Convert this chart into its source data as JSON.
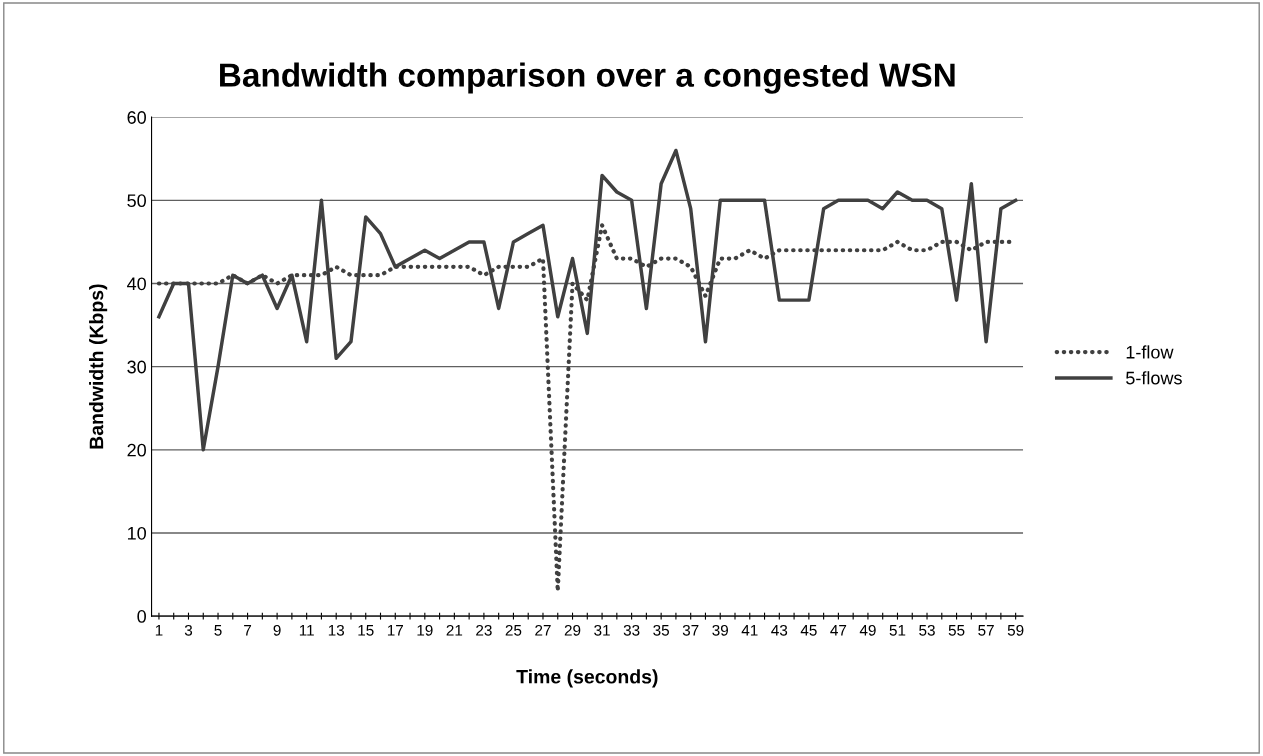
{
  "chart_data": {
    "type": "line",
    "title": "Bandwidth comparison over a congested WSN",
    "xlabel": "Time (seconds)",
    "ylabel": "Bandwidth (Kbps)",
    "categories": [
      "1",
      null,
      "3",
      null,
      "5",
      null,
      "7",
      null,
      "9",
      null,
      "11",
      null,
      "13",
      null,
      "15",
      null,
      "17",
      null,
      "19",
      null,
      "21",
      null,
      "23",
      null,
      "25",
      null,
      "27",
      null,
      "29",
      null,
      "31",
      null,
      "33",
      null,
      "35",
      null,
      "37",
      null,
      "39",
      null,
      "41",
      null,
      "43",
      null,
      "45",
      null,
      "47",
      null,
      "49",
      null,
      "51",
      null,
      "53",
      null,
      "55",
      null,
      "57",
      null,
      "59"
    ],
    "series": [
      {
        "name": "1-flow",
        "color": "#404040",
        "line_style": "dotted",
        "values": [
          40,
          40,
          40,
          40,
          40,
          41,
          40,
          41,
          40,
          41,
          41,
          41,
          42,
          41,
          41,
          41,
          42,
          42,
          42,
          42,
          42,
          42,
          41,
          42,
          42,
          42,
          43,
          3,
          40,
          38,
          47,
          43,
          43,
          42,
          43,
          43,
          42,
          38.5,
          43,
          43,
          44,
          43,
          44,
          44,
          44,
          44,
          44,
          44,
          44,
          44,
          45,
          44,
          44,
          45,
          45,
          44,
          45,
          45,
          45
        ]
      },
      {
        "name": "5-flows",
        "color": "#404040",
        "line_style": "solid",
        "values": [
          36,
          40,
          40,
          20,
          30,
          41,
          40,
          41,
          37,
          41,
          33,
          50,
          31,
          33,
          48,
          46,
          42,
          43,
          44,
          43,
          44,
          45,
          45,
          37,
          45,
          46,
          47,
          36,
          43,
          34,
          53,
          51,
          50,
          37,
          52,
          56,
          49,
          33,
          50,
          50,
          50,
          50,
          38,
          38,
          38,
          49,
          50,
          50,
          50,
          49,
          51,
          50,
          50,
          49,
          38,
          52,
          33,
          49,
          50
        ]
      }
    ],
    "ylim": [
      0,
      60
    ],
    "yticks": [
      0,
      10,
      20,
      30,
      40,
      50,
      60
    ],
    "grid": "y",
    "legend": "right",
    "marker": "none"
  }
}
